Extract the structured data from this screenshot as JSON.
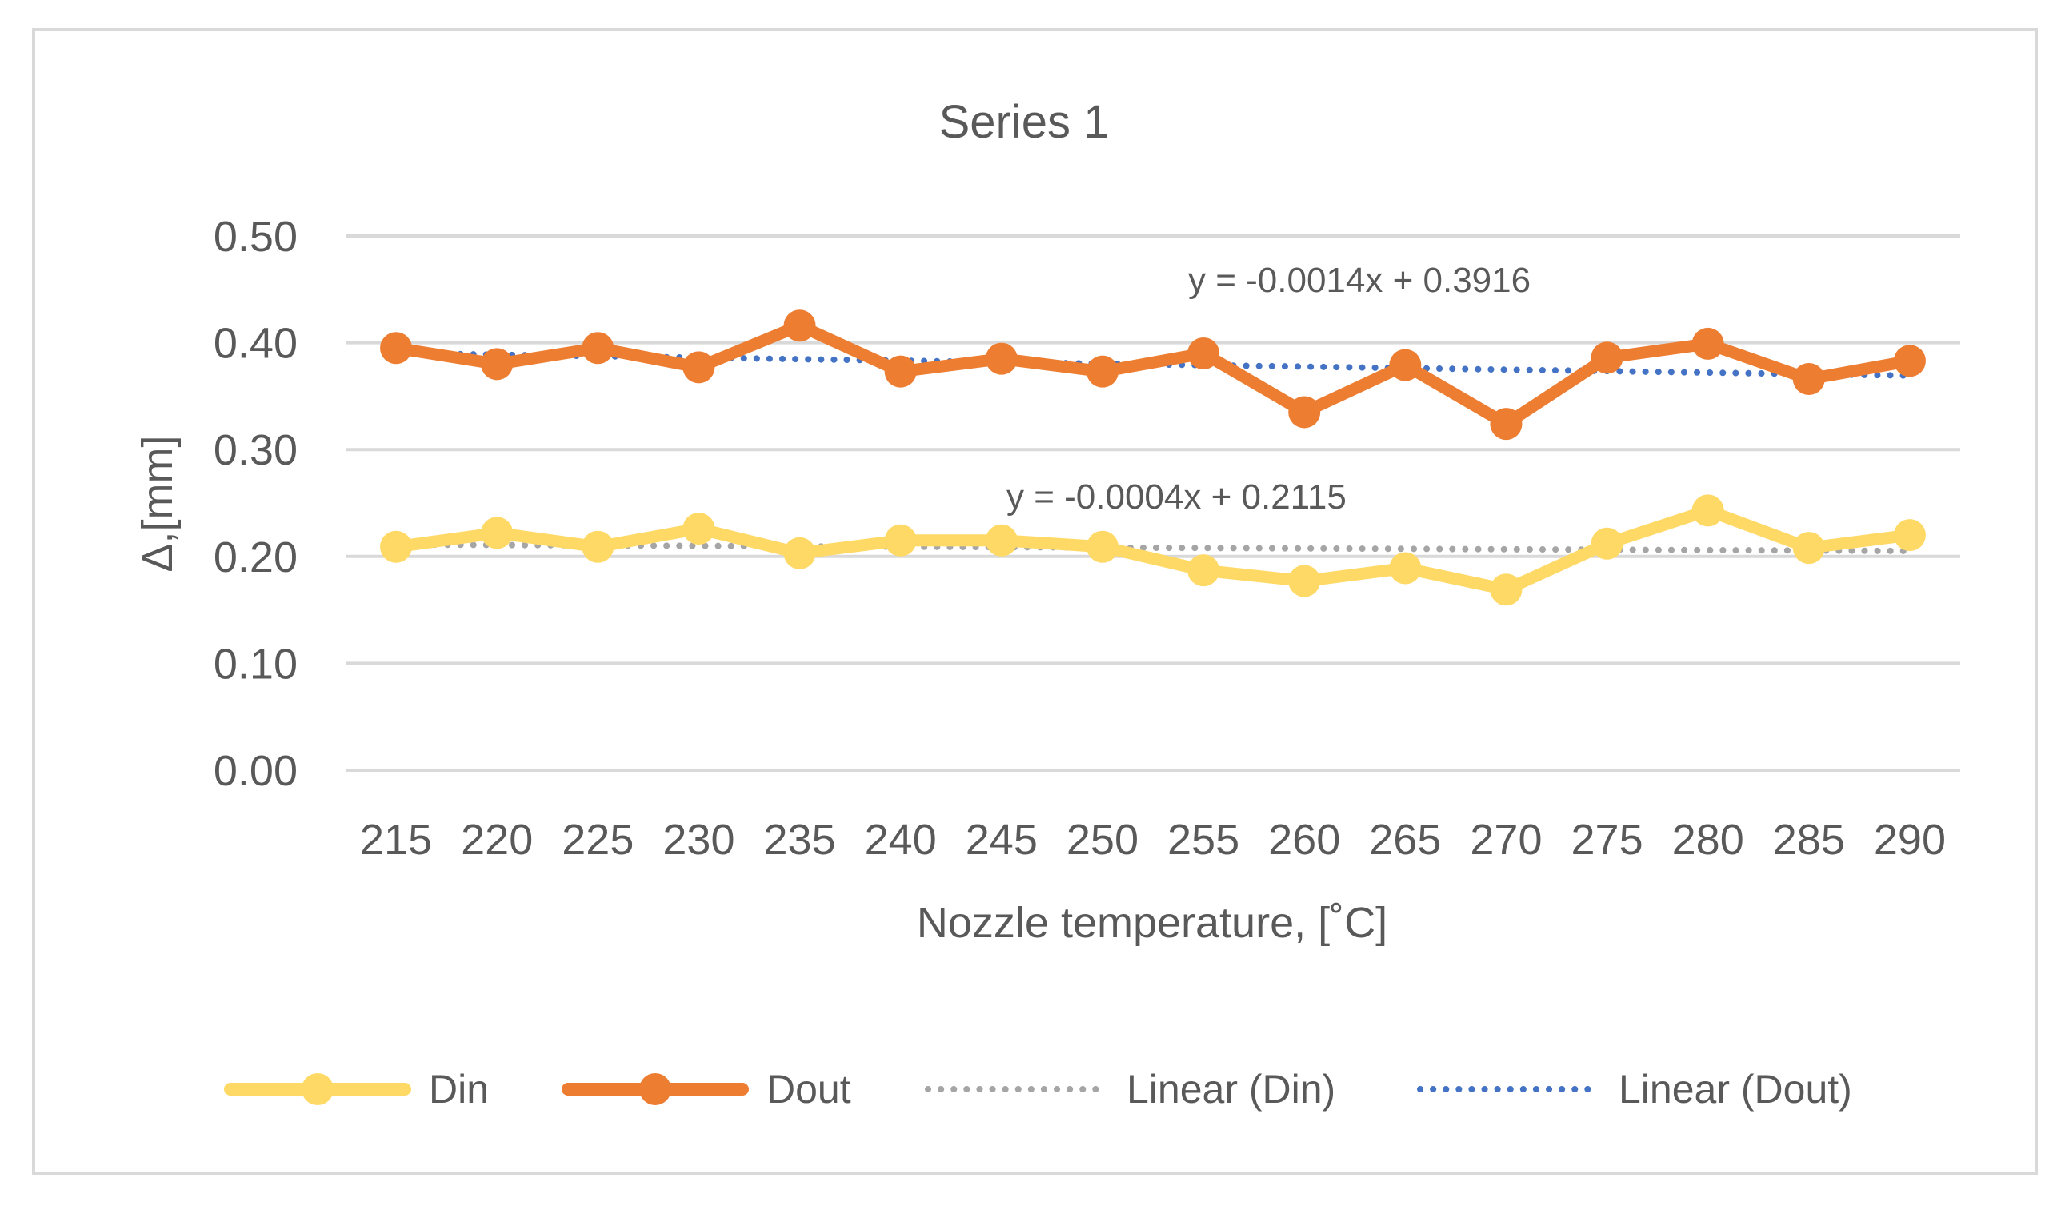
{
  "chart_data": {
    "type": "line",
    "title": "Series 1",
    "xlabel": "Nozzle temperature, [˚C]",
    "ylabel": "Δ,[mm]",
    "ylim": [
      0,
      0.5
    ],
    "yticks": [
      "0.00",
      "0.10",
      "0.20",
      "0.30",
      "0.40",
      "0.50"
    ],
    "grid": true,
    "legend_position": "bottom",
    "categories": [
      "215",
      "220",
      "225",
      "230",
      "235",
      "240",
      "245",
      "250",
      "255",
      "260",
      "265",
      "270",
      "275",
      "280",
      "285",
      "290"
    ],
    "series": [
      {
        "name": "Din",
        "color": "#FFD966",
        "style": "solid-markers",
        "values": [
          0.209,
          0.222,
          0.209,
          0.226,
          0.203,
          0.215,
          0.215,
          0.209,
          0.187,
          0.177,
          0.189,
          0.169,
          0.212,
          0.243,
          0.208,
          0.22
        ]
      },
      {
        "name": "Dout",
        "color": "#ED7D31",
        "style": "solid-markers",
        "values": [
          0.395,
          0.38,
          0.395,
          0.377,
          0.416,
          0.373,
          0.385,
          0.373,
          0.39,
          0.335,
          0.379,
          0.324,
          0.386,
          0.399,
          0.366,
          0.383
        ]
      }
    ],
    "trendlines": [
      {
        "name": "Linear (Din)",
        "of": "Din",
        "color": "#A5A5A5",
        "style": "dotted",
        "slope": -0.0004,
        "intercept": 0.2115,
        "equation": "y = -0.0004x + 0.2115"
      },
      {
        "name": "Linear (Dout)",
        "of": "Dout",
        "color": "#4472C4",
        "style": "dotted",
        "slope": -0.0014,
        "intercept": 0.3916,
        "equation": "y = -0.0014x + 0.3916"
      }
    ]
  }
}
